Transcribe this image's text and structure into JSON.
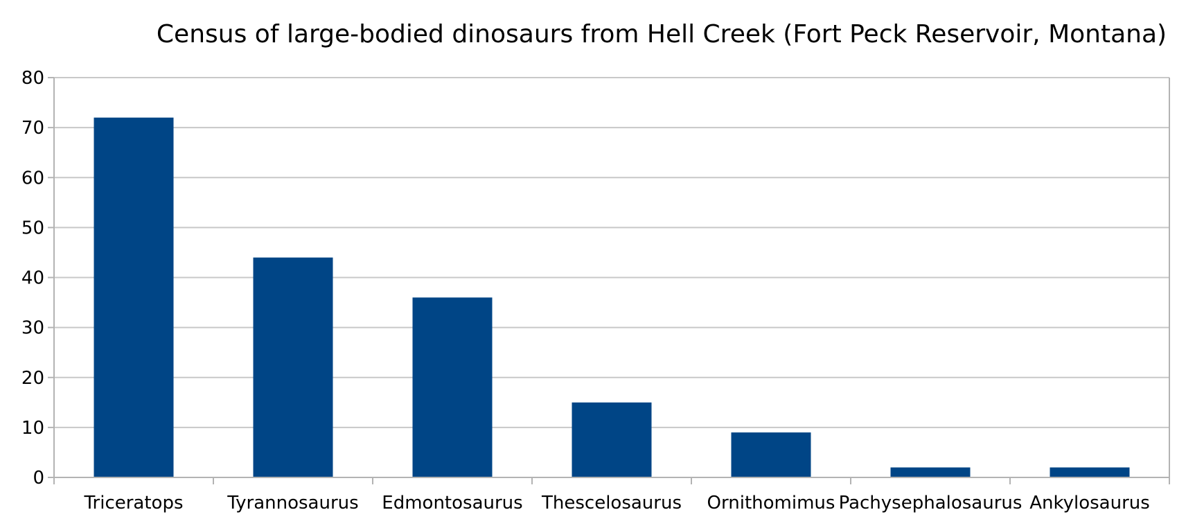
{
  "chart_data": {
    "type": "bar",
    "title": "Census of large-bodied dinosaurs from Hell Creek  (Fort Peck Reservoir, Montana)",
    "xlabel": "",
    "ylabel": "",
    "categories": [
      "Triceratops",
      "Tyrannosaurus",
      "Edmontosaurus",
      "Thescelosaurus",
      "Ornithomimus",
      "Pachysephalosaurus",
      "Ankylosaurus"
    ],
    "values": [
      72,
      44,
      36,
      15,
      9,
      2,
      2
    ],
    "ylim": [
      0,
      80
    ],
    "yticks": [
      0,
      10,
      20,
      30,
      40,
      50,
      60,
      70,
      80
    ],
    "grid": true,
    "legend": "none",
    "bar_color": "#004586",
    "grid_color": "#c8c8c8",
    "axis_color": "#b3b3b3"
  }
}
